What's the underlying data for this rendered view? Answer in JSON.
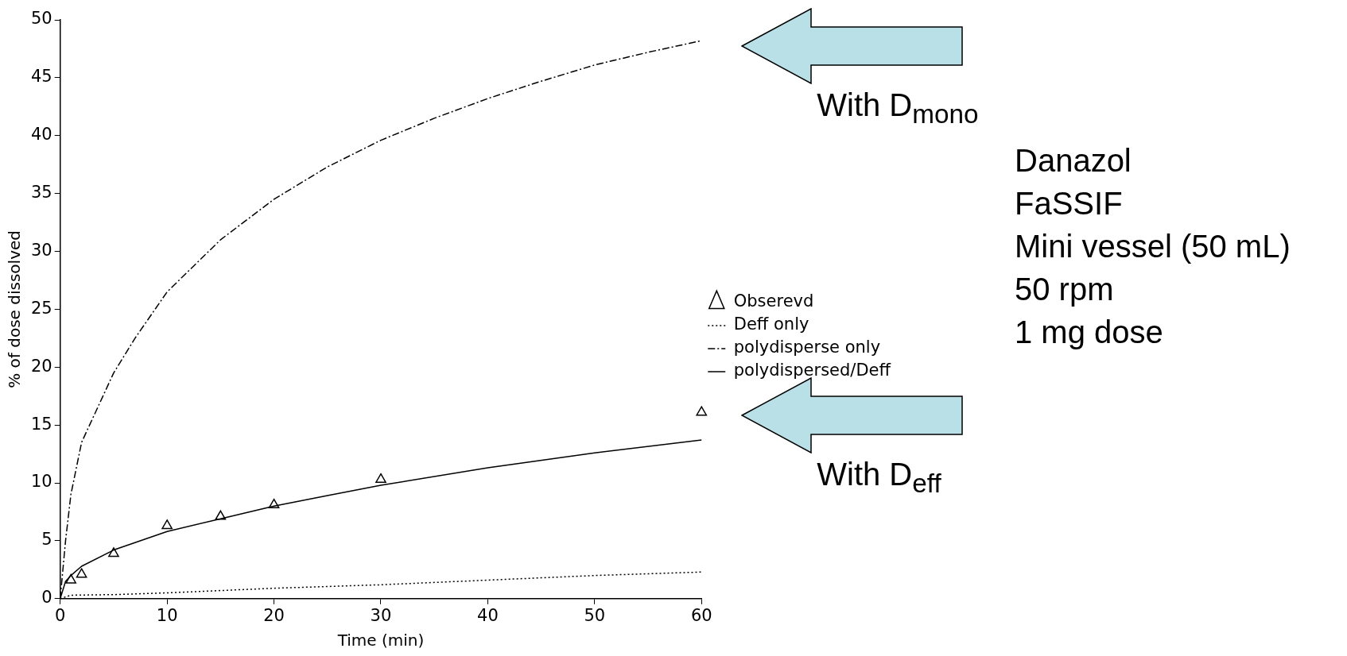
{
  "chart_data": {
    "type": "line",
    "xlabel": "Time (min)",
    "ylabel": "% of dose dissolved",
    "xlim": [
      0,
      60
    ],
    "xticks": [
      0,
      10,
      20,
      30,
      40,
      50,
      60
    ],
    "ylim": [
      0,
      50
    ],
    "yticks": [
      0,
      5,
      10,
      15,
      20,
      25,
      30,
      35,
      40,
      45,
      50
    ],
    "grid": false,
    "legend": "right",
    "series": [
      {
        "name": "Obserevd",
        "type": "scatter",
        "marker": "triangle",
        "color": "#000000",
        "x": [
          1,
          2,
          5,
          10,
          15,
          20,
          30,
          60
        ],
        "values": [
          1.6,
          2.1,
          3.9,
          6.3,
          7.1,
          8.1,
          10.3,
          16.1
        ]
      },
      {
        "name": "Deff only",
        "type": "line",
        "line_style": "dotted",
        "color": "#000000",
        "x": [
          0,
          1,
          5,
          10,
          20,
          30,
          40,
          50,
          60
        ],
        "values": [
          0,
          0.3,
          0.35,
          0.5,
          0.9,
          1.2,
          1.6,
          2.0,
          2.3
        ]
      },
      {
        "name": "polydisperse only",
        "type": "line",
        "line_style": "dashed",
        "color": "#000000",
        "x": [
          0,
          0.5,
          1,
          2,
          3,
          5,
          7,
          10,
          15,
          20,
          25,
          30,
          35,
          40,
          45,
          50,
          55,
          60
        ],
        "values": [
          0,
          5,
          9,
          13.5,
          15.5,
          19.5,
          22.5,
          26.5,
          31,
          34.5,
          37.3,
          39.6,
          41.5,
          43.2,
          44.7,
          46.1,
          47.2,
          48.2
        ]
      },
      {
        "name": "polydispersed/Deff",
        "type": "line",
        "line_style": "solid",
        "color": "#000000",
        "x": [
          0,
          0.5,
          1,
          2,
          5,
          10,
          15,
          20,
          25,
          30,
          40,
          50,
          60
        ],
        "values": [
          0,
          1.5,
          2,
          2.8,
          4.2,
          5.8,
          6.9,
          8,
          8.9,
          9.8,
          11.3,
          12.6,
          13.7
        ]
      }
    ],
    "annotations": [
      "With D$_{mono}$",
      "With D$_{eff}$",
      "Danazol",
      "FaSSIF",
      "Mini vessel (50 mL)",
      "50 rpm",
      "1 mg dose"
    ]
  }
}
